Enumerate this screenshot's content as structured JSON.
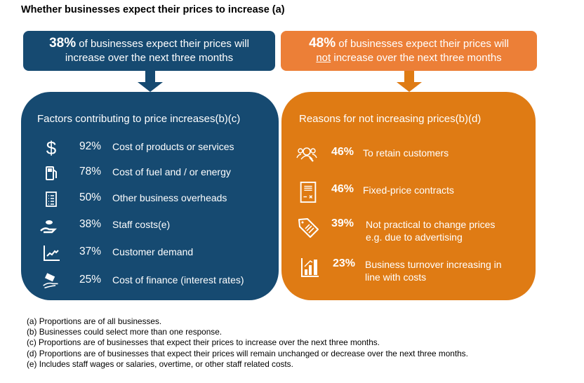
{
  "title": "Whether businesses expect their prices to increase (a)",
  "colors": {
    "blue": "#164a71",
    "orange_header": "#ec7f37",
    "orange_box": "#df7b14"
  },
  "left": {
    "header_pct": "38%",
    "header_line1": "of businesses expect their prices will",
    "header_line2": "increase over the next three months",
    "box_title": "Factors contributing to price increases(b)(c)",
    "items": [
      {
        "icon": "dollar-icon",
        "pct": "92%",
        "label": "Cost of products or services"
      },
      {
        "icon": "fuel-pump-icon",
        "pct": "78%",
        "label": "Cost of fuel and / or energy"
      },
      {
        "icon": "checklist-icon",
        "pct": "50%",
        "label": "Other business overheads"
      },
      {
        "icon": "hand-coins-icon",
        "pct": "38%",
        "label": "Staff costs(e)"
      },
      {
        "icon": "trend-chart-icon",
        "pct": "37%",
        "label": "Customer demand"
      },
      {
        "icon": "hand-money-icon",
        "pct": "25%",
        "label": "Cost of finance (interest rates)"
      }
    ]
  },
  "right": {
    "header_pct": "48%",
    "header_line1": "of businesses expect their prices will",
    "header_not": "not",
    "header_line2": "increase over the next three months",
    "box_title": "Reasons for not increasing prices(b)(d)",
    "items": [
      {
        "icon": "customers-search-icon",
        "pct": "46%",
        "label": "To retain customers"
      },
      {
        "icon": "contract-icon",
        "pct": "46%",
        "label": "Fixed-price contracts"
      },
      {
        "icon": "price-tag-icon",
        "pct": "39%",
        "label": "Not practical to change prices",
        "label2": "e.g. due to advertising"
      },
      {
        "icon": "bar-chart-icon",
        "pct": "23%",
        "label": "Business turnover increasing in",
        "label2": "line with costs"
      }
    ]
  },
  "footnotes": [
    "(a) Proportions are of all businesses.",
    "(b) Businesses could select more than one response.",
    "(c) Proportions are of businesses that expect their prices to increase over the next three months.",
    "(d) Proportions are of businesses that expect their prices will remain unchanged or decrease over the next three months.",
    "(e) Includes staff wages or salaries, overtime, or other staff related costs."
  ]
}
